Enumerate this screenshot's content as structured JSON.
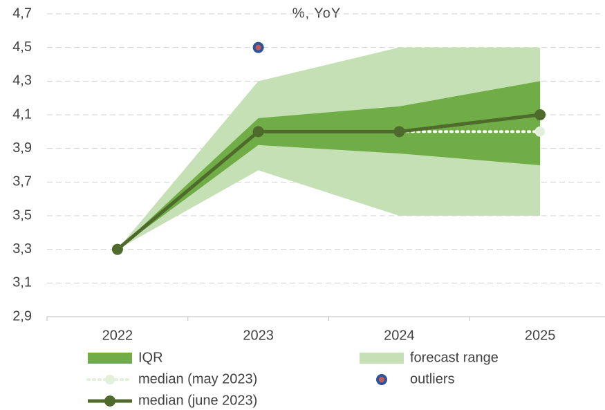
{
  "chart_data": {
    "type": "line",
    "title": "%, YoY",
    "categories": [
      "2022",
      "2023",
      "2024",
      "2025"
    ],
    "ylim": [
      2.9,
      4.7
    ],
    "yticks": [
      {
        "value": 2.9,
        "label": "2,9"
      },
      {
        "value": 3.1,
        "label": "3,1"
      },
      {
        "value": 3.3,
        "label": "3,3"
      },
      {
        "value": 3.5,
        "label": "3,5"
      },
      {
        "value": 3.7,
        "label": "3,7"
      },
      {
        "value": 3.9,
        "label": "3,9"
      },
      {
        "value": 4.1,
        "label": "4,1"
      },
      {
        "value": 4.3,
        "label": "4,3"
      },
      {
        "value": 4.5,
        "label": "4,5"
      },
      {
        "value": 4.7,
        "label": "4,7"
      }
    ],
    "grid": true,
    "series": [
      {
        "name": "forecast range",
        "type": "range",
        "color": "#c5e0b4",
        "low": [
          3.3,
          3.77,
          3.5,
          3.5
        ],
        "high": [
          3.3,
          4.3,
          4.5,
          4.5
        ]
      },
      {
        "name": "IQR",
        "type": "range",
        "color": "#70ad47",
        "low": [
          3.3,
          3.92,
          3.87,
          3.8
        ],
        "high": [
          3.3,
          4.08,
          4.15,
          4.3
        ]
      },
      {
        "name": "median (may 2023)",
        "type": "dotted",
        "color": "#e2efd9",
        "values": [
          3.3,
          4.0,
          4.0,
          4.0
        ]
      },
      {
        "name": "median (june 2023)",
        "type": "line",
        "color": "#4e6b2c",
        "values": [
          3.3,
          4.0,
          4.0,
          4.1
        ]
      },
      {
        "name": "outliers",
        "type": "points",
        "color": "#c55a5a",
        "edgecolor": "#2f5597",
        "values": [
          null,
          4.5,
          null,
          null
        ]
      }
    ]
  }
}
